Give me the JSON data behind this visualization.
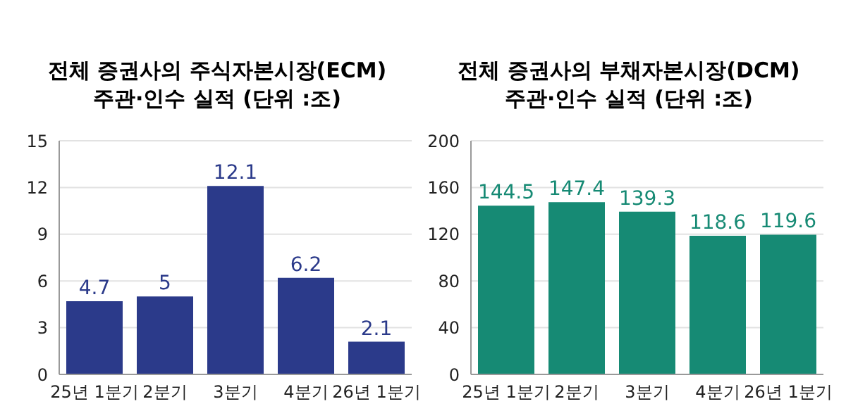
{
  "chart_data": [
    {
      "type": "bar",
      "title": "전체 증권사의 주식자본시장(ECM)",
      "subtitle": "주관·인수 실적  (단위 :조)",
      "categories": [
        "25년 1분기",
        "2분기",
        "3분기",
        "4분기",
        "26년 1분기"
      ],
      "values": [
        4.7,
        5,
        12.1,
        6.2,
        2.1
      ],
      "color": "#2b3a8a",
      "ylim": [
        0,
        15
      ],
      "yticks": [
        0,
        3,
        6,
        9,
        12,
        15
      ],
      "grid": "y",
      "data_labels": true
    },
    {
      "type": "bar",
      "title": "전체 증권사의 부채자본시장(DCM)",
      "subtitle": "주관·인수 실적  (단위 :조)",
      "categories": [
        "25년 1분기",
        "2분기",
        "3분기",
        "4분기",
        "26년 1분기"
      ],
      "values": [
        144.5,
        147.4,
        139.3,
        118.6,
        119.6
      ],
      "color": "#168a74",
      "ylim": [
        0,
        200
      ],
      "yticks": [
        0,
        40,
        80,
        120,
        160,
        200
      ],
      "grid": "y",
      "data_labels": true
    }
  ]
}
